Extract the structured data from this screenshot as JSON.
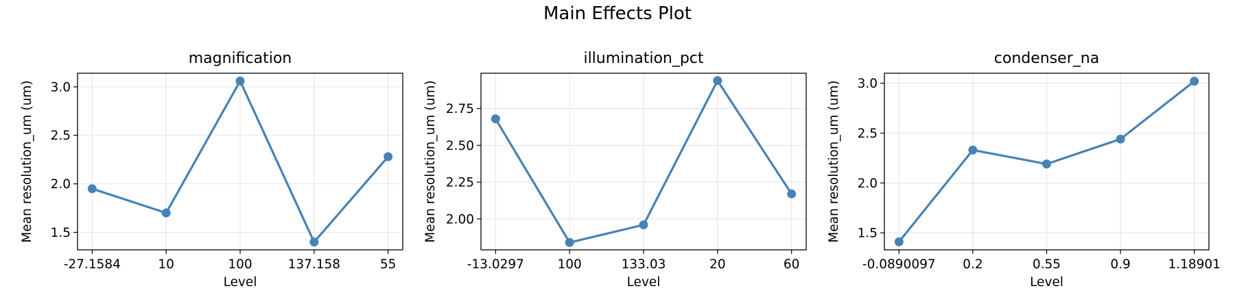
{
  "figure": {
    "title": "Main Effects Plot",
    "line_color": "#4682b4"
  },
  "chart_data": [
    {
      "type": "line",
      "title": "magnification",
      "xlabel": "Level",
      "ylabel": "Mean resolution_um (um)",
      "categories": [
        "-27.1584",
        "10",
        "100",
        "137.158",
        "55"
      ],
      "values": [
        1.95,
        1.7,
        3.06,
        1.4,
        2.28
      ],
      "yticks": [
        1.5,
        2.0,
        2.5,
        3.0
      ],
      "ytick_labels": [
        "1.5",
        "2.0",
        "2.5",
        "3.0"
      ],
      "ylim": [
        1.32,
        3.14
      ],
      "grid": true,
      "markers": true
    },
    {
      "type": "line",
      "title": "illumination_pct",
      "xlabel": "Level",
      "ylabel": "Mean resolution_um (um)",
      "categories": [
        "-13.0297",
        "100",
        "133.03",
        "20",
        "60"
      ],
      "values": [
        2.68,
        1.84,
        1.96,
        2.94,
        2.17
      ],
      "yticks": [
        2.0,
        2.25,
        2.5,
        2.75
      ],
      "ytick_labels": [
        "2.00",
        "2.25",
        "2.50",
        "2.75"
      ],
      "ylim": [
        1.79,
        2.99
      ],
      "grid": true,
      "markers": true
    },
    {
      "type": "line",
      "title": "condenser_na",
      "xlabel": "Level",
      "ylabel": "Mean resolution_um (um)",
      "categories": [
        "-0.0890097",
        "0.2",
        "0.55",
        "0.9",
        "1.18901"
      ],
      "values": [
        1.41,
        2.33,
        2.19,
        2.44,
        3.02
      ],
      "yticks": [
        1.5,
        2.0,
        2.5,
        3.0
      ],
      "ytick_labels": [
        "1.5",
        "2.0",
        "2.5",
        "3.0"
      ],
      "ylim": [
        1.33,
        3.1
      ],
      "grid": true,
      "markers": true
    }
  ]
}
